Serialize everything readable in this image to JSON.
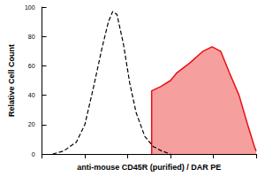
{
  "chart_data": {
    "type": "histogram",
    "x_label": "anti-mouse CD45R (purified) / DAR PE",
    "y_label": "Relative Cell Count",
    "log": "x",
    "xlim": [
      1,
      100000
    ],
    "xticks": [
      1,
      10,
      100,
      1000,
      10000,
      100000
    ],
    "ylim": [
      0,
      100
    ],
    "yticks": [
      0,
      20,
      40,
      60,
      80,
      100
    ],
    "tick_labels": "y",
    "grid": false,
    "series": [
      {
        "type": "line",
        "line_style": "dashed",
        "color": "#000000",
        "x": [
          1.78,
          3.16,
          6.31,
          10,
          15.8,
          25.1,
          35.5,
          44.7,
          56.2,
          79.4,
          112,
          158,
          251,
          398,
          631,
          1000
        ],
        "values": [
          0,
          2,
          8,
          20,
          45,
          72,
          90,
          97,
          95,
          75,
          48,
          28,
          12,
          5,
          2,
          0
        ]
      },
      {
        "type": "area",
        "line_style": "solid",
        "color": "#e81010",
        "x": [
          363,
          363,
          600,
          1000,
          1380,
          2820,
          5750,
          9330,
          14800,
          24000,
          39800,
          63100,
          91200,
          100000
        ],
        "values": [
          0,
          43,
          46,
          50,
          55,
          62,
          70,
          73,
          70,
          55,
          40,
          20,
          5,
          2
        ]
      }
    ]
  }
}
